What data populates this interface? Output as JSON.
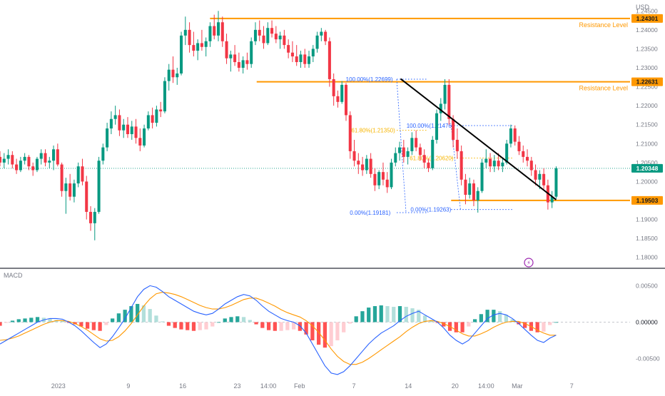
{
  "chart_data": [
    {
      "type": "candlestick",
      "panel": "price",
      "currency_label": "USD",
      "price_axis": {
        "ylim": [
          1.1775,
          1.2475
        ],
        "ticks": [
          "1.24500",
          "1.24000",
          "1.23500",
          "1.23000",
          "1.22500",
          "1.22000",
          "1.21500",
          "1.21000",
          "1.20500",
          "1.20000",
          "1.19500",
          "1.19000",
          "1.18500",
          "1.18000"
        ],
        "tick_values": [
          1.245,
          1.24,
          1.235,
          1.23,
          1.225,
          1.22,
          1.215,
          1.21,
          1.205,
          1.2,
          1.195,
          1.19,
          1.185,
          1.18
        ]
      },
      "time_axis": {
        "labels": [
          "2023",
          "9",
          "16",
          "23",
          "14:00",
          "Feb",
          "7",
          "14",
          "20",
          "14:00",
          "Mar",
          "7"
        ],
        "positions": [
          0.5,
          9.5,
          16.5,
          23.5,
          27.5,
          31.5,
          38.5,
          45.5,
          51.5,
          55.5,
          59.5,
          66.5
        ],
        "xlim": [
          -7,
          74
        ]
      },
      "current_price": {
        "label": "1.20348",
        "value": 1.20348,
        "color": "#089981"
      },
      "levels": [
        {
          "label": "Resistance Level",
          "price_tag": "1.24301",
          "value": 1.24301,
          "start": 20,
          "color": "#ff9800"
        },
        {
          "label": "Resistance Level",
          "price_tag": "1.22631",
          "value": 1.22631,
          "start": 26,
          "color": "#ff9800"
        },
        {
          "label": "",
          "price_tag": "1.19503",
          "value": 1.19503,
          "start": 51,
          "color": "#ff9800"
        }
      ],
      "trendline": {
        "from": [
          44.5,
          1.2271
        ],
        "to": [
          64.5,
          1.1952
        ],
        "color": "#000000"
      },
      "fibonacci": [
        {
          "labels": [
            "100.00%(1.22699)",
            "61.80%(1.21350)",
            "0.00%(1.19181)"
          ],
          "values": [
            1.22699,
            1.2135,
            1.19181
          ],
          "x_start": 44,
          "x_end": 48,
          "label_x": [
            43.5,
            43.8,
            43.2
          ],
          "colors": [
            "#2962ff",
            "#f7b500",
            "#2962ff"
          ]
        },
        {
          "labels": [
            "100.00%(1.21476)",
            "61.80%(1.20620)",
            "0.00%(1.19263)"
          ],
          "values": [
            1.21476,
            1.2062,
            1.19263
          ],
          "x_start": 51,
          "x_end": 59,
          "label_x": [
            51.3,
            51.3,
            51.0
          ],
          "colors": [
            "#2962ff",
            "#f7b500",
            "#2962ff"
          ]
        }
      ],
      "candles": [
        [
          1.2065,
          1.208,
          1.204,
          1.205
        ],
        [
          1.205,
          1.2075,
          1.2035,
          1.206
        ],
        [
          1.206,
          1.2085,
          1.2045,
          1.207
        ],
        [
          1.207,
          1.208,
          1.2035,
          1.2045
        ],
        [
          1.2045,
          1.206,
          1.202,
          1.203
        ],
        [
          1.203,
          1.2065,
          1.2025,
          1.2055
        ],
        [
          1.2055,
          1.2075,
          1.2045,
          1.2065
        ],
        [
          1.2065,
          1.207,
          1.203,
          1.204
        ],
        [
          1.204,
          1.205,
          1.2015,
          1.203
        ],
        [
          1.203,
          1.2065,
          1.2025,
          1.206
        ],
        [
          1.206,
          1.2085,
          1.2045,
          1.2075
        ],
        [
          1.2075,
          1.2085,
          1.204,
          1.205
        ],
        [
          1.205,
          1.2065,
          1.2035,
          1.2055
        ],
        [
          1.2055,
          1.2095,
          1.203,
          1.2085
        ],
        [
          1.2085,
          1.21,
          1.204,
          1.2045
        ],
        [
          1.2045,
          1.205,
          1.196,
          1.1975
        ],
        [
          1.1975,
          1.201,
          1.1915,
          1.1995
        ],
        [
          1.1995,
          1.202,
          1.195,
          1.196
        ],
        [
          1.196,
          1.2005,
          1.1945,
          1.1995
        ],
        [
          1.1995,
          1.205,
          1.1985,
          1.204
        ],
        [
          1.204,
          1.206,
          1.199,
          1.2
        ],
        [
          1.2,
          1.2015,
          1.19,
          1.192
        ],
        [
          1.192,
          1.1935,
          1.187,
          1.189
        ],
        [
          1.189,
          1.193,
          1.1845,
          1.192
        ],
        [
          1.192,
          1.2065,
          1.1915,
          1.2055
        ],
        [
          1.2055,
          1.21,
          1.2045,
          1.209
        ],
        [
          1.209,
          1.2155,
          1.208,
          1.214
        ],
        [
          1.214,
          1.2185,
          1.2125,
          1.2165
        ],
        [
          1.2165,
          1.22,
          1.215,
          1.2175
        ],
        [
          1.2175,
          1.219,
          1.212,
          1.2135
        ],
        [
          1.2135,
          1.2165,
          1.2115,
          1.215
        ],
        [
          1.215,
          1.217,
          1.2115,
          1.2125
        ],
        [
          1.2125,
          1.216,
          1.211,
          1.2145
        ],
        [
          1.2145,
          1.2165,
          1.21,
          1.2115
        ],
        [
          1.2115,
          1.214,
          1.208,
          1.2095
        ],
        [
          1.2095,
          1.215,
          1.209,
          1.214
        ],
        [
          1.214,
          1.2185,
          1.2135,
          1.2175
        ],
        [
          1.2175,
          1.2195,
          1.214,
          1.2155
        ],
        [
          1.2155,
          1.22,
          1.2145,
          1.219
        ],
        [
          1.219,
          1.221,
          1.217,
          1.2185
        ],
        [
          1.2185,
          1.2275,
          1.218,
          1.2265
        ],
        [
          1.2265,
          1.231,
          1.224,
          1.2295
        ],
        [
          1.2295,
          1.233,
          1.226,
          1.2275
        ],
        [
          1.2275,
          1.23,
          1.2255,
          1.2285
        ],
        [
          1.2285,
          1.2395,
          1.228,
          1.2385
        ],
        [
          1.2385,
          1.2435,
          1.236,
          1.24
        ],
        [
          1.24,
          1.242,
          1.234,
          1.236
        ],
        [
          1.236,
          1.2395,
          1.233,
          1.2345
        ],
        [
          1.2345,
          1.2375,
          1.232,
          1.2365
        ],
        [
          1.2365,
          1.24,
          1.2345,
          1.2355
        ],
        [
          1.2355,
          1.238,
          1.233,
          1.237
        ],
        [
          1.237,
          1.242,
          1.2355,
          1.241
        ],
        [
          1.241,
          1.244,
          1.2375,
          1.2385
        ],
        [
          1.2385,
          1.245,
          1.237,
          1.242
        ],
        [
          1.242,
          1.2435,
          1.2355,
          1.237
        ],
        [
          1.237,
          1.239,
          1.231,
          1.2325
        ],
        [
          1.2325,
          1.2345,
          1.229,
          1.2335
        ],
        [
          1.2335,
          1.236,
          1.2305,
          1.2315
        ],
        [
          1.2315,
          1.234,
          1.229,
          1.23
        ],
        [
          1.23,
          1.233,
          1.2285,
          1.232
        ],
        [
          1.232,
          1.234,
          1.2295,
          1.231
        ],
        [
          1.231,
          1.238,
          1.23,
          1.237
        ],
        [
          1.237,
          1.242,
          1.236,
          1.24
        ],
        [
          1.24,
          1.2425,
          1.237,
          1.2385
        ],
        [
          1.2385,
          1.241,
          1.235,
          1.2365
        ],
        [
          1.2365,
          1.242,
          1.236,
          1.2405
        ],
        [
          1.2405,
          1.2425,
          1.238,
          1.239
        ],
        [
          1.239,
          1.241,
          1.2365,
          1.2375
        ],
        [
          1.2375,
          1.2395,
          1.235,
          1.2385
        ],
        [
          1.2385,
          1.24,
          1.235,
          1.236
        ],
        [
          1.236,
          1.2375,
          1.2325,
          1.234
        ],
        [
          1.234,
          1.237,
          1.2315,
          1.233
        ],
        [
          1.233,
          1.236,
          1.2305,
          1.2315
        ],
        [
          1.2315,
          1.2345,
          1.23,
          1.2335
        ],
        [
          1.2335,
          1.235,
          1.23,
          1.231
        ],
        [
          1.231,
          1.2345,
          1.23,
          1.233
        ],
        [
          1.233,
          1.236,
          1.2315,
          1.235
        ],
        [
          1.235,
          1.2395,
          1.234,
          1.2385
        ],
        [
          1.2385,
          1.2405,
          1.237,
          1.2395
        ],
        [
          1.2395,
          1.24,
          1.236,
          1.237
        ],
        [
          1.237,
          1.238,
          1.225,
          1.227
        ],
        [
          1.227,
          1.2285,
          1.22,
          1.2225
        ],
        [
          1.2225,
          1.224,
          1.2195,
          1.221
        ],
        [
          1.221,
          1.2265,
          1.2205,
          1.2255
        ],
        [
          1.2255,
          1.226,
          1.216,
          1.2175
        ],
        [
          1.2175,
          1.2185,
          1.206,
          1.208
        ],
        [
          1.208,
          1.211,
          1.204,
          1.2055
        ],
        [
          1.2055,
          1.2075,
          1.202,
          1.2045
        ],
        [
          1.2045,
          1.2065,
          1.2015,
          1.203
        ],
        [
          1.203,
          1.207,
          1.202,
          1.206
        ],
        [
          1.206,
          1.2075,
          1.201,
          1.202
        ],
        [
          1.202,
          1.2035,
          1.1975,
          1.199
        ],
        [
          1.199,
          1.203,
          1.198,
          1.2025
        ],
        [
          1.2025,
          1.205,
          1.199,
          1.2005
        ],
        [
          1.2005,
          1.2025,
          1.197,
          1.1985
        ],
        [
          1.1985,
          1.206,
          1.198,
          1.205
        ],
        [
          1.205,
          1.209,
          1.204,
          1.2075
        ],
        [
          1.2075,
          1.2105,
          1.2055,
          1.209
        ],
        [
          1.209,
          1.211,
          1.205,
          1.2065
        ],
        [
          1.2065,
          1.209,
          1.2045,
          1.208
        ],
        [
          1.208,
          1.213,
          1.207,
          1.2115
        ],
        [
          1.2115,
          1.2135,
          1.208,
          1.209
        ],
        [
          1.209,
          1.21,
          1.2055,
          1.207
        ],
        [
          1.207,
          1.2085,
          1.2035,
          1.205
        ],
        [
          1.205,
          1.206,
          1.2025,
          1.2035
        ],
        [
          1.2035,
          1.212,
          1.203,
          1.211
        ],
        [
          1.211,
          1.219,
          1.21,
          1.218
        ],
        [
          1.218,
          1.222,
          1.216,
          1.2205
        ],
        [
          1.2205,
          1.227,
          1.219,
          1.2255
        ],
        [
          1.2255,
          1.227,
          1.215,
          1.2165
        ],
        [
          1.2165,
          1.2175,
          1.209,
          1.211
        ],
        [
          1.211,
          1.214,
          1.206,
          1.208
        ],
        [
          1.208,
          1.2095,
          1.199,
          1.2005
        ],
        [
          1.2005,
          1.202,
          1.194,
          1.1965
        ],
        [
          1.1965,
          1.201,
          1.1955,
          1.1995
        ],
        [
          1.1995,
          1.2005,
          1.1935,
          1.195
        ],
        [
          1.195,
          1.1985,
          1.1918,
          1.1975
        ],
        [
          1.1975,
          1.206,
          1.197,
          1.205
        ],
        [
          1.205,
          1.2085,
          1.2035,
          1.206
        ],
        [
          1.206,
          1.2075,
          1.2025,
          1.204
        ],
        [
          1.204,
          1.207,
          1.2025,
          1.2055
        ],
        [
          1.2055,
          1.2075,
          1.203,
          1.204
        ],
        [
          1.204,
          1.206,
          1.2025,
          1.205
        ],
        [
          1.205,
          1.211,
          1.2045,
          1.21
        ],
        [
          1.21,
          1.215,
          1.209,
          1.214
        ],
        [
          1.214,
          1.2148,
          1.2095,
          1.2105
        ],
        [
          1.2105,
          1.212,
          1.207,
          1.208
        ],
        [
          1.208,
          1.2095,
          1.205,
          1.2065
        ],
        [
          1.2065,
          1.2085,
          1.204,
          1.2055
        ],
        [
          1.2055,
          1.2065,
          1.2015,
          1.203
        ],
        [
          1.203,
          1.2045,
          1.199,
          1.2005
        ],
        [
          1.2005,
          1.203,
          1.198,
          1.202
        ],
        [
          1.202,
          1.2035,
          1.198,
          1.199
        ],
        [
          1.199,
          1.2005,
          1.1926,
          1.1945
        ],
        [
          1.1945,
          1.1975,
          1.193,
          1.196
        ],
        [
          1.196,
          1.204,
          1.1955,
          1.2035
        ]
      ]
    },
    {
      "type": "line",
      "panel": "indicator",
      "title": "MACD",
      "y_axis": {
        "ylim": [
          -0.0075,
          0.0072
        ],
        "ticks": [
          "0.00500",
          "0.00000",
          "-0.00500"
        ],
        "tick_values": [
          0.005,
          0.0,
          -0.005
        ],
        "zero_label_color": "#131722"
      },
      "series": [
        {
          "name": "",
          "color": "#2962ff",
          "values": [
            -0.003,
            -0.0025,
            -0.002,
            -0.0015,
            -0.001,
            -0.0005,
            0.0,
            0.0003,
            0.0005,
            0.0005,
            0.0004,
            0.0,
            -0.0005,
            -0.0012,
            -0.002,
            -0.0028,
            -0.0035,
            -0.003,
            -0.002,
            -0.0008,
            0.0005,
            0.002,
            0.0035,
            0.0045,
            0.005,
            0.0048,
            0.0042,
            0.0035,
            0.003,
            0.0025,
            0.002,
            0.0015,
            0.0012,
            0.001,
            0.0012,
            0.0018,
            0.0025,
            0.003,
            0.0035,
            0.0038,
            0.0036,
            0.003,
            0.0022,
            0.0015,
            0.001,
            0.0005,
            0.0002,
            0.0,
            -0.0005,
            -0.0015,
            -0.003,
            -0.0045,
            -0.006,
            -0.007,
            -0.0072,
            -0.0068,
            -0.006,
            -0.005,
            -0.004,
            -0.003,
            -0.0022,
            -0.0015,
            -0.001,
            -0.0005,
            0.0002,
            0.0008,
            0.0012,
            0.0015,
            0.001,
            0.0005,
            0.0,
            -0.0008,
            -0.0018,
            -0.0025,
            -0.003,
            -0.0025,
            -0.0015,
            -0.0005,
            0.0005,
            0.001,
            0.0012,
            0.001,
            0.0005,
            -0.0002,
            -0.001,
            -0.0018,
            -0.0025,
            -0.0028,
            -0.0022,
            -0.0018
          ]
        },
        {
          "name": "",
          "color": "#ff9800",
          "values": [
            -0.0025,
            -0.0024,
            -0.0022,
            -0.0019,
            -0.0015,
            -0.0011,
            -0.0007,
            -0.0003,
            0.0,
            0.0002,
            0.0002,
            0.0001,
            -0.0002,
            -0.0006,
            -0.0011,
            -0.0017,
            -0.0023,
            -0.0026,
            -0.0025,
            -0.002,
            -0.0012,
            -0.0002,
            0.001,
            0.0022,
            0.0032,
            0.0039,
            0.0041,
            0.004,
            0.0038,
            0.0035,
            0.0031,
            0.0027,
            0.0023,
            0.002,
            0.0018,
            0.0018,
            0.002,
            0.0023,
            0.0027,
            0.0031,
            0.0033,
            0.0033,
            0.003,
            0.0026,
            0.0022,
            0.0017,
            0.0013,
            0.001,
            0.0007,
            0.0002,
            -0.0005,
            -0.0014,
            -0.0025,
            -0.0037,
            -0.0047,
            -0.0054,
            -0.0058,
            -0.0058,
            -0.0055,
            -0.005,
            -0.0044,
            -0.0038,
            -0.0032,
            -0.0026,
            -0.002,
            -0.0013,
            -0.0007,
            -0.0002,
            0.0001,
            0.0002,
            0.0001,
            -0.0002,
            -0.0006,
            -0.0011,
            -0.0016,
            -0.0019,
            -0.0019,
            -0.0016,
            -0.0012,
            -0.0007,
            -0.0003,
            0.0,
            0.0001,
            0.0001,
            -0.0002,
            -0.0006,
            -0.0011,
            -0.0015,
            -0.0018,
            -0.0018
          ]
        }
      ],
      "histogram_colors": {
        "up_strong": "#26a69a",
        "up_weak": "#b2dfdb",
        "down_strong": "#ff5252",
        "down_weak": "#ffcdd2"
      }
    }
  ],
  "event_marker": {
    "glyph": "⚡",
    "color": "#9c27b0"
  }
}
